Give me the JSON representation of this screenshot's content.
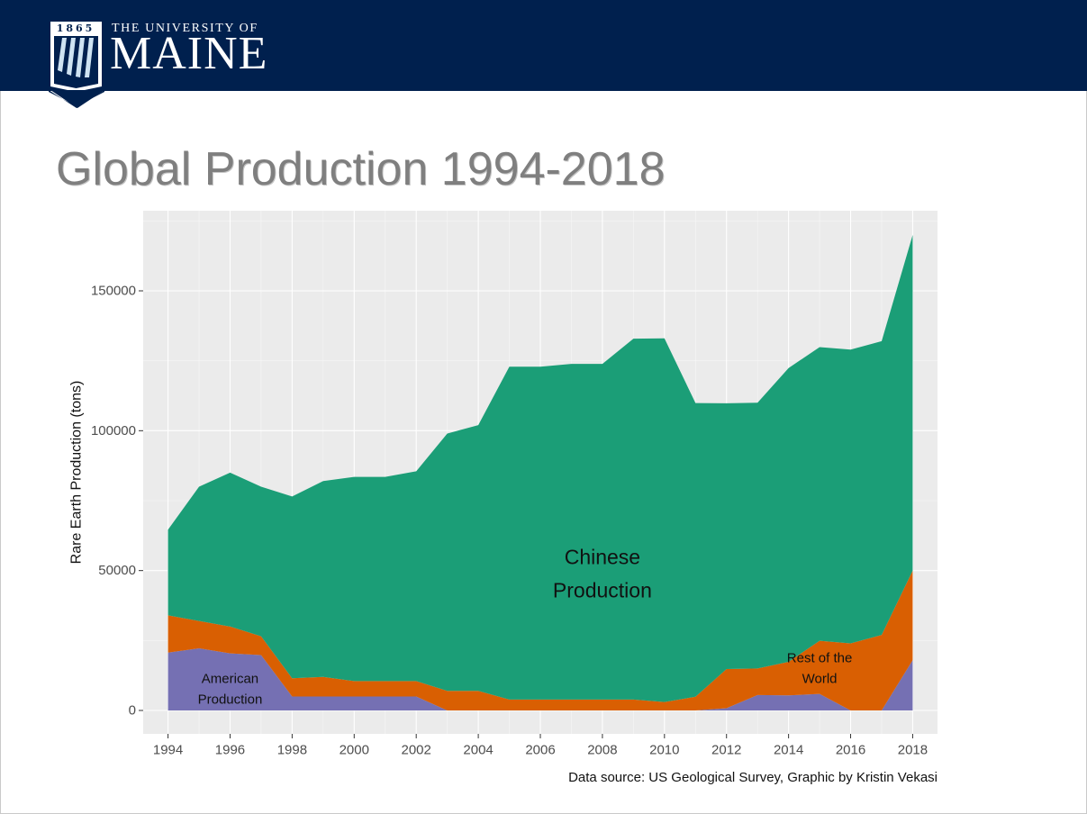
{
  "header": {
    "logo_established": "1865",
    "logo_line1": "THE UNIVERSITY OF",
    "logo_line2": "MAINE"
  },
  "page_title": "Global Production 1994-2018",
  "source_note": "Data source: US Geological Survey, Graphic by Kristin Vekasi",
  "colors": {
    "banner": "#00204e",
    "american": "#7570b3",
    "rest_of_world": "#d95f02",
    "chinese": "#1b9e77",
    "panel": "#ebebeb"
  },
  "chart_data": {
    "type": "area",
    "stacked": true,
    "title": "",
    "xlabel": "",
    "ylabel": "Rare Earth Production (tons)",
    "xlim": [
      1994,
      2018
    ],
    "ylim": [
      0,
      170000
    ],
    "x_ticks": [
      1994,
      1996,
      1998,
      2000,
      2002,
      2004,
      2006,
      2008,
      2010,
      2012,
      2014,
      2016,
      2018
    ],
    "y_ticks": [
      0,
      50000,
      100000,
      150000
    ],
    "grid": true,
    "x": [
      1994,
      1995,
      1996,
      1997,
      1998,
      1999,
      2000,
      2001,
      2002,
      2003,
      2004,
      2005,
      2006,
      2007,
      2008,
      2009,
      2010,
      2011,
      2012,
      2013,
      2014,
      2015,
      2016,
      2017,
      2018
    ],
    "series": [
      {
        "key": "american",
        "color": "#7570b3",
        "label_lines": [
          "American",
          "Production"
        ],
        "label_x": 1996,
        "label_y": 7500,
        "label_size": "small",
        "values": [
          20700,
          22200,
          20400,
          19800,
          5000,
          5000,
          5000,
          5000,
          5000,
          0,
          0,
          0,
          0,
          0,
          0,
          0,
          0,
          0,
          800,
          5500,
          5400,
          5900,
          0,
          0,
          18000
        ]
      },
      {
        "key": "rest_of_world",
        "color": "#d95f02",
        "label_lines": [
          "Rest of the",
          "World"
        ],
        "label_x": 2015,
        "label_y": 15000,
        "label_size": "small",
        "values": [
          13300,
          9800,
          9600,
          6700,
          6500,
          7000,
          5500,
          5500,
          5500,
          7000,
          7000,
          3900,
          3900,
          3900,
          3900,
          3900,
          3000,
          4900,
          14000,
          9500,
          12000,
          19000,
          24000,
          27000,
          32000
        ]
      },
      {
        "key": "chinese",
        "color": "#1b9e77",
        "label_lines": [
          "Chinese",
          "Production"
        ],
        "label_x": 2008,
        "label_y": 49000,
        "label_size": "large",
        "values": [
          30600,
          48000,
          55000,
          53500,
          65000,
          70000,
          73000,
          73000,
          75000,
          92000,
          95000,
          119000,
          119000,
          120000,
          120000,
          129000,
          130000,
          105000,
          95000,
          95000,
          105000,
          105000,
          105000,
          105000,
          120000
        ]
      }
    ]
  }
}
